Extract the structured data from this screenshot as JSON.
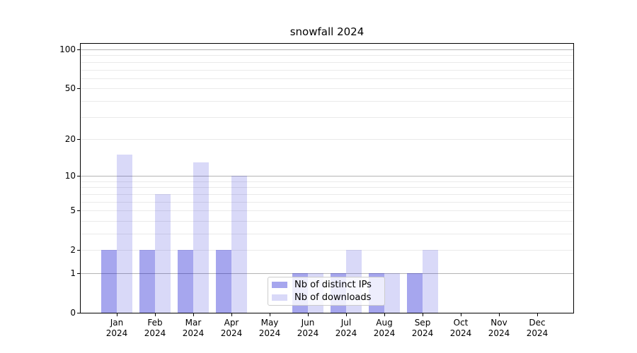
{
  "chart_data": {
    "type": "bar",
    "title": "snowfall 2024",
    "xlabel": "",
    "ylabel": "",
    "categories": [
      {
        "month": "Jan",
        "year": "2024"
      },
      {
        "month": "Feb",
        "year": "2024"
      },
      {
        "month": "Mar",
        "year": "2024"
      },
      {
        "month": "Apr",
        "year": "2024"
      },
      {
        "month": "May",
        "year": "2024"
      },
      {
        "month": "Jun",
        "year": "2024"
      },
      {
        "month": "Jul",
        "year": "2024"
      },
      {
        "month": "Aug",
        "year": "2024"
      },
      {
        "month": "Sep",
        "year": "2024"
      },
      {
        "month": "Oct",
        "year": "2024"
      },
      {
        "month": "Nov",
        "year": "2024"
      },
      {
        "month": "Dec",
        "year": "2024"
      }
    ],
    "series": [
      {
        "name": "Nb of distinct IPs",
        "color": "rgba(0,0,205,0.35)",
        "values": [
          2,
          2,
          2,
          2,
          0,
          1,
          1,
          1,
          1,
          0,
          0,
          0
        ]
      },
      {
        "name": "Nb of downloads",
        "color": "rgba(0,0,205,0.15)",
        "values": [
          15,
          7,
          13,
          10,
          0,
          1,
          2,
          1,
          2,
          0,
          0,
          0
        ]
      }
    ],
    "yscale": "log1p",
    "ylim": [
      0,
      110.6
    ],
    "yticks": [
      0,
      1,
      2,
      5,
      10,
      20,
      50,
      100
    ],
    "grid": true,
    "gridlines": {
      "major": [
        1,
        10,
        100
      ],
      "minor": [
        2,
        3,
        4,
        5,
        6,
        7,
        8,
        9,
        20,
        30,
        40,
        50,
        60,
        70,
        80,
        90
      ],
      "major_color": "#b4b4b4",
      "minor_color": "#eaeaea"
    },
    "legend_position": "inside-lower-center",
    "frame_color": "#000000",
    "text_color": "#000000"
  }
}
